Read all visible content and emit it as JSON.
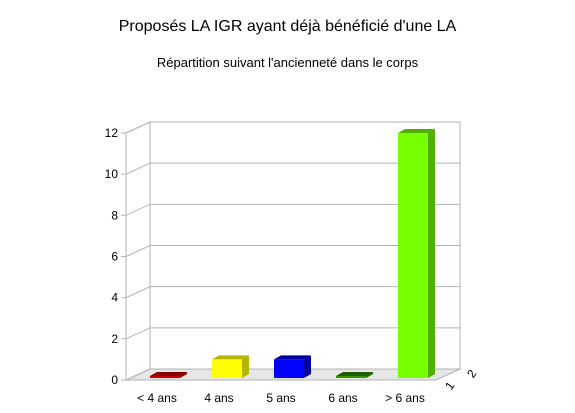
{
  "chart_data": {
    "type": "bar",
    "title": "Proposés LA IGR ayant déjà bénéficié d'une LA",
    "subtitle": "Répartition suivant l'ancienneté dans le corps",
    "categories": [
      "< 4 ans",
      "4 ans",
      "5 ans",
      "6 ans",
      "> 6 ans"
    ],
    "values": [
      0,
      1,
      1,
      0,
      12
    ],
    "colors": [
      "#cc0000",
      "#ffff00",
      "#0000ff",
      "#339900",
      "#77ff00"
    ],
    "side_colors": [
      "#880000",
      "#b5b500",
      "#0000a0",
      "#1f5e00",
      "#4fb000"
    ],
    "yticks": [
      0,
      2,
      4,
      6,
      8,
      10,
      12
    ],
    "ylim": [
      0,
      12
    ],
    "depth_labels": [
      "1",
      "2"
    ],
    "grid": true,
    "xlabel": "",
    "ylabel": ""
  }
}
